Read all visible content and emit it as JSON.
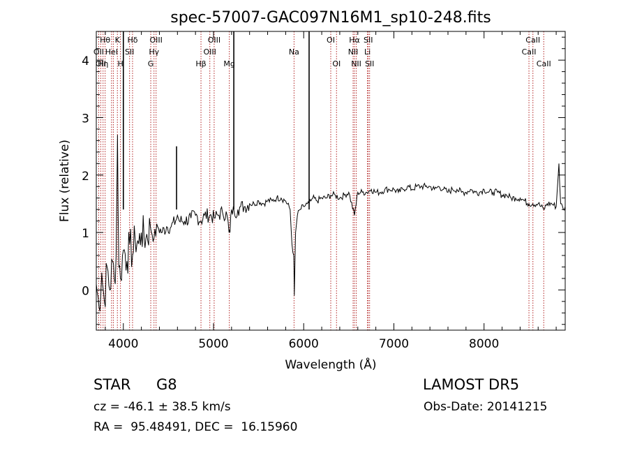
{
  "chart_data": {
    "type": "line",
    "title": "spec-57007-GAC097N16M1_sp10-248.fits",
    "xlabel": "Wavelength (Å)",
    "ylabel": "Flux (relative)",
    "xlim": [
      3700,
      8900
    ],
    "ylim": [
      -0.7,
      4.5
    ],
    "x_ticks": [
      4000,
      5000,
      6000,
      7000,
      8000
    ],
    "y_ticks": [
      0,
      1,
      2,
      3,
      4
    ],
    "line_color": "#000000",
    "marker_color": "#b22222",
    "grid": false,
    "series": [
      {
        "x": [
          3700,
          3730,
          3760,
          3790,
          3820,
          3850,
          3880,
          3900,
          3920,
          3935,
          3950,
          3968,
          3990,
          4010,
          4040,
          4070,
          4102,
          4130,
          4170,
          4200,
          4250,
          4300,
          4340,
          4380,
          4430,
          4480,
          4530,
          4580,
          4600,
          4620,
          4680,
          4750,
          4800,
          4861,
          4900,
          4960,
          5007,
          5050,
          5100,
          5150,
          5172,
          5183,
          5200,
          5230,
          5270,
          5300,
          5350,
          5400,
          5450,
          5500,
          5550,
          5600,
          5650,
          5700,
          5750,
          5800,
          5850,
          5870,
          5890,
          5896,
          5910,
          5930,
          5960,
          6000,
          6040,
          6060,
          6080,
          6100,
          6150,
          6200,
          6250,
          6300,
          6350,
          6400,
          6450,
          6500,
          6563,
          6600,
          6650,
          6700,
          6750,
          6800,
          6850,
          6900,
          6950,
          7000,
          7050,
          7100,
          7150,
          7200,
          7250,
          7300,
          7350,
          7400,
          7450,
          7500,
          7550,
          7600,
          7650,
          7700,
          7750,
          7800,
          7850,
          7900,
          7950,
          8000,
          8050,
          8100,
          8150,
          8200,
          8250,
          8300,
          8350,
          8400,
          8450,
          8498,
          8542,
          8600,
          8662,
          8700,
          8750,
          8800,
          8830,
          8850,
          8880,
          8900
        ],
        "y": [
          0.1,
          -0.3,
          0.3,
          -0.2,
          0.4,
          0.0,
          0.5,
          0.2,
          0.6,
          2.7,
          0.4,
          0.2,
          0.6,
          0.7,
          0.5,
          0.8,
          0.6,
          0.9,
          0.8,
          1.0,
          0.9,
          1.1,
          0.9,
          1.1,
          1.0,
          1.1,
          1.1,
          1.2,
          1.3,
          1.2,
          1.2,
          1.25,
          1.3,
          1.2,
          1.3,
          1.3,
          1.25,
          1.3,
          1.35,
          1.3,
          1.0,
          1.0,
          1.4,
          1.35,
          1.4,
          1.45,
          1.45,
          1.5,
          1.5,
          1.55,
          1.5,
          1.55,
          1.55,
          1.6,
          1.6,
          1.55,
          1.4,
          0.8,
          0.6,
          -0.1,
          1.0,
          1.3,
          1.4,
          1.45,
          1.5,
          1.5,
          1.55,
          1.6,
          1.55,
          1.6,
          1.6,
          1.65,
          1.65,
          1.6,
          1.65,
          1.7,
          1.3,
          1.7,
          1.7,
          1.7,
          1.75,
          1.7,
          1.7,
          1.75,
          1.75,
          1.75,
          1.7,
          1.75,
          1.8,
          1.75,
          1.8,
          1.8,
          1.8,
          1.8,
          1.75,
          1.8,
          1.75,
          1.7,
          1.75,
          1.75,
          1.7,
          1.7,
          1.75,
          1.7,
          1.7,
          1.75,
          1.7,
          1.7,
          1.7,
          1.65,
          1.65,
          1.6,
          1.6,
          1.6,
          1.55,
          1.5,
          1.5,
          1.5,
          1.4,
          1.5,
          1.5,
          1.45,
          2.2,
          1.5,
          1.4,
          1.45
        ]
      }
    ],
    "spikes": [
      {
        "x": 4000,
        "y": 4.5
      },
      {
        "x": 4590,
        "y": 2.5
      },
      {
        "x": 5225,
        "y": 4.5
      },
      {
        "x": 6060,
        "y": 4.5
      }
    ],
    "lines": [
      {
        "x": 3727,
        "label": "OII",
        "row": 1
      },
      {
        "x": 3750,
        "label": "OII",
        "row": 2
      },
      {
        "x": 3775,
        "label": "Hη",
        "row": 2
      },
      {
        "x": 3798,
        "label": "Hθ",
        "row": 0
      },
      {
        "x": 3869,
        "label": "HeI",
        "row": 1
      },
      {
        "x": 3889,
        "label": "",
        "row": 0
      },
      {
        "x": 3934,
        "label": "K",
        "row": 0
      },
      {
        "x": 3968,
        "label": "H",
        "row": 2
      },
      {
        "x": 4069,
        "label": "SII",
        "row": 1
      },
      {
        "x": 4102,
        "label": "Hδ",
        "row": 0
      },
      {
        "x": 4304,
        "label": "G",
        "row": 2
      },
      {
        "x": 4340,
        "label": "Hγ",
        "row": 1
      },
      {
        "x": 4363,
        "label": "OIII",
        "row": 0
      },
      {
        "x": 4861,
        "label": "Hβ",
        "row": 2
      },
      {
        "x": 4959,
        "label": "OIII",
        "row": 1
      },
      {
        "x": 5007,
        "label": "OIII",
        "row": 0
      },
      {
        "x": 5175,
        "label": "Mg",
        "row": 2
      },
      {
        "x": 5893,
        "label": "Na",
        "row": 1
      },
      {
        "x": 6300,
        "label": "OI",
        "row": 0
      },
      {
        "x": 6364,
        "label": "OI",
        "row": 2
      },
      {
        "x": 6548,
        "label": "NII",
        "row": 1
      },
      {
        "x": 6563,
        "label": "Hα",
        "row": 0
      },
      {
        "x": 6583,
        "label": "NII",
        "row": 2
      },
      {
        "x": 6707,
        "label": "Li",
        "row": 1
      },
      {
        "x": 6716,
        "label": "SII",
        "row": 0
      },
      {
        "x": 6731,
        "label": "SII",
        "row": 2
      },
      {
        "x": 8498,
        "label": "CaII",
        "row": 1
      },
      {
        "x": 8542,
        "label": "CaII",
        "row": 0
      },
      {
        "x": 8662,
        "label": "CaII",
        "row": 2
      }
    ]
  },
  "info": {
    "class": "STAR",
    "subclass": "G8",
    "survey": "LAMOST DR5",
    "redshift": "cz = -46.1 ± 38.5 km/s",
    "obs_date": "Obs-Date: 20141215",
    "coords": "RA =  95.48491, DEC =  16.15960"
  }
}
